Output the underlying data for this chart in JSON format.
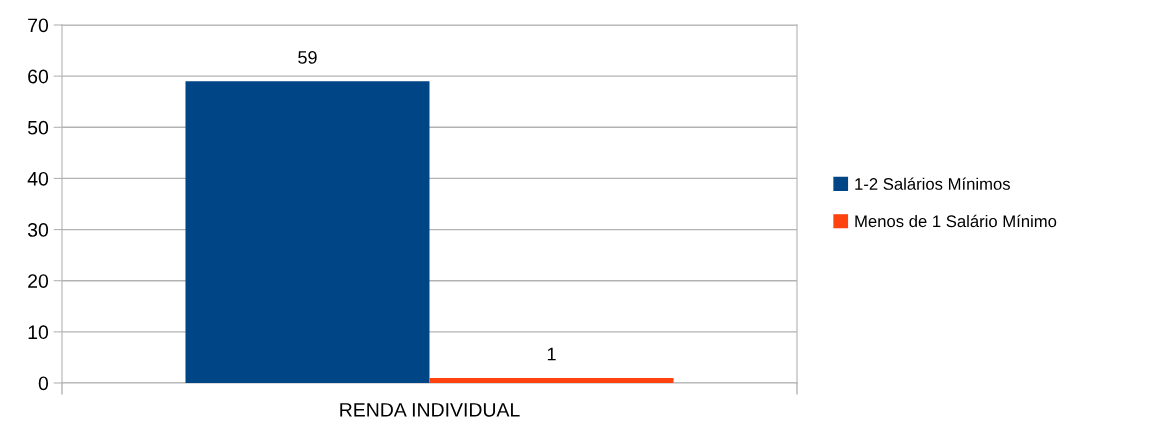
{
  "chart_data": {
    "type": "bar",
    "categories": [
      "RENDA INDIVIDUAL"
    ],
    "series": [
      {
        "name": "1-2 Salários Mínimos",
        "color": "#004586",
        "values": [
          59
        ]
      },
      {
        "name": "Menos de 1 Salário Mínimo",
        "color": "#ff420e",
        "values": [
          1
        ]
      }
    ],
    "ylim": [
      0,
      70
    ],
    "yticks": [
      0,
      10,
      20,
      30,
      40,
      50,
      60,
      70
    ],
    "grid": "y",
    "legend": "right",
    "data_labels": true
  }
}
